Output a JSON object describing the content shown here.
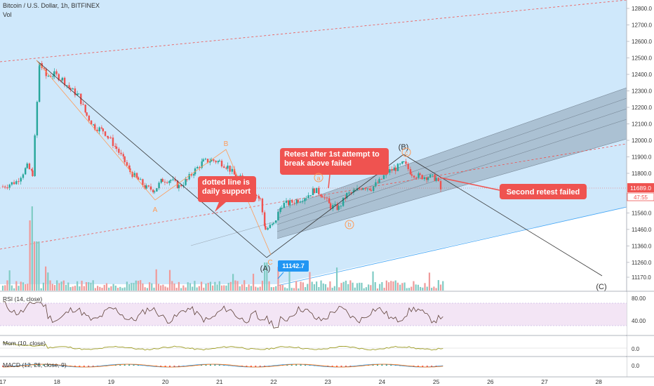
{
  "header": {
    "symbol_title": "Bitcoin / U.S. Dollar, 1h, BITFINEX",
    "volume_label": "Vol"
  },
  "price_badge": {
    "value": "11689.0",
    "countdown": "47:55"
  },
  "low_marker": "11142.7",
  "annotations": {
    "retest_note": "Retest after 1st attempt to break above failed",
    "support_note": "dotted line is daily support",
    "second_retest_note": "Second retest failed"
  },
  "wave_labels": {
    "A_orange": "A",
    "B_orange": "B",
    "C_orange": "C",
    "wave_A": "(A)",
    "wave_B": "(B)",
    "wave_C": "(C)",
    "sub_a": "a",
    "sub_b": "b",
    "sub_c": "c"
  },
  "indicators": {
    "rsi": {
      "label": "RSI (14, close)",
      "ticks": [
        "80.00",
        "40.00"
      ]
    },
    "mom": {
      "label": "Mom (10, close)",
      "ticks": [
        "0.0"
      ]
    },
    "macd": {
      "label": "MACD (12, 26, close, 9)",
      "ticks": [
        "0.0"
      ]
    }
  },
  "colors": {
    "up": "#26a69a",
    "down": "#ef5350",
    "background_zone": "#cfe8fb",
    "annotation_red": "#ef5350",
    "label_blue": "#2196f3"
  },
  "chart_data": {
    "type": "candlestick",
    "title": "Bitcoin / U.S. Dollar, 1h, BITFINEX",
    "x_ticks": [
      "17",
      "18",
      "19",
      "20",
      "21",
      "22",
      "23",
      "24",
      "25",
      "26",
      "27",
      "28"
    ],
    "y_ticks": [
      11170,
      11260,
      11360,
      11460,
      11560,
      11689,
      11800,
      11900,
      12000,
      12100,
      12200,
      12300,
      12400,
      12500,
      12600,
      12700,
      12800
    ],
    "ylim": [
      11100,
      12850
    ],
    "xlim": [
      17.0,
      28.75
    ],
    "grid": false,
    "close_path": [
      [
        17.0,
        11720
      ],
      [
        17.25,
        11750
      ],
      [
        17.45,
        11840
      ],
      [
        17.55,
        11800
      ],
      [
        17.68,
        12470
      ],
      [
        17.8,
        12390
      ],
      [
        17.95,
        12400
      ],
      [
        18.1,
        12370
      ],
      [
        18.25,
        12310
      ],
      [
        18.4,
        12270
      ],
      [
        18.55,
        12150
      ],
      [
        18.7,
        12080
      ],
      [
        18.85,
        12060
      ],
      [
        18.95,
        12020
      ],
      [
        19.1,
        11950
      ],
      [
        19.25,
        11870
      ],
      [
        19.35,
        11810
      ],
      [
        19.5,
        11760
      ],
      [
        19.65,
        11710
      ],
      [
        19.8,
        11700
      ],
      [
        19.95,
        11760
      ],
      [
        20.1,
        11760
      ],
      [
        20.25,
        11720
      ],
      [
        20.4,
        11760
      ],
      [
        20.55,
        11820
      ],
      [
        20.7,
        11870
      ],
      [
        20.85,
        11880
      ],
      [
        21.0,
        11870
      ],
      [
        21.15,
        11840
      ],
      [
        21.3,
        11780
      ],
      [
        21.45,
        11760
      ],
      [
        21.6,
        11700
      ],
      [
        21.75,
        11640
      ],
      [
        21.85,
        11460
      ],
      [
        22.0,
        11490
      ],
      [
        22.15,
        11610
      ],
      [
        22.3,
        11620
      ],
      [
        22.45,
        11640
      ],
      [
        22.6,
        11660
      ],
      [
        22.75,
        11700
      ],
      [
        22.9,
        11670
      ],
      [
        23.05,
        11600
      ],
      [
        23.2,
        11590
      ],
      [
        23.35,
        11670
      ],
      [
        23.5,
        11690
      ],
      [
        23.65,
        11720
      ],
      [
        23.8,
        11710
      ],
      [
        23.95,
        11750
      ],
      [
        24.1,
        11810
      ],
      [
        24.25,
        11830
      ],
      [
        24.4,
        11860
      ],
      [
        24.55,
        11800
      ],
      [
        24.7,
        11780
      ],
      [
        24.85,
        11780
      ],
      [
        25.0,
        11770
      ],
      [
        25.1,
        11689
      ]
    ],
    "volume_series": "volume bars",
    "levels": {
      "current_price": 11689.0,
      "low": 11142.7
    },
    "annotations_text": [
      "Retest after 1st attempt to break above failed",
      "dotted line is daily support",
      "Second retest failed"
    ]
  }
}
